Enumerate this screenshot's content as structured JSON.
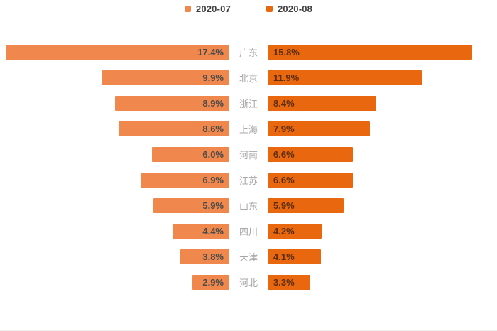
{
  "page": {
    "background": "#ffffff",
    "bottom_divider_color": "#f0f0ee"
  },
  "legend": {
    "position": "top-center",
    "items": [
      {
        "label": "2020-07",
        "color": "#F0884D"
      },
      {
        "label": "2020-08",
        "color": "#E9680F"
      }
    ]
  },
  "chart_data": {
    "type": "bar",
    "orientation": "horizontal-bidirectional-tornado",
    "title": "",
    "xlabel": "",
    "ylabel": "",
    "grid": false,
    "legend_position": "top-center",
    "axis_max": 17.4,
    "categories": [
      "广东",
      "北京",
      "浙江",
      "上海",
      "河南",
      "江苏",
      "山东",
      "四川",
      "天津",
      "河北"
    ],
    "series": [
      {
        "name": "2020-07",
        "side": "left",
        "color": "#F0884D",
        "values": [
          17.4,
          9.9,
          8.9,
          8.6,
          6.0,
          6.9,
          5.9,
          4.4,
          3.8,
          2.9
        ]
      },
      {
        "name": "2020-08",
        "side": "right",
        "color": "#E9680F",
        "values": [
          15.8,
          11.9,
          8.4,
          7.9,
          6.6,
          6.6,
          5.9,
          4.2,
          4.1,
          3.3
        ]
      }
    ],
    "value_label_format": "{value}%"
  },
  "styles": {
    "category_label_color": "#a8a8a8",
    "value_label_color_left": "#4a4a4a",
    "value_label_color_right": "#5e2d0a",
    "legend_text_color": "#404040"
  }
}
